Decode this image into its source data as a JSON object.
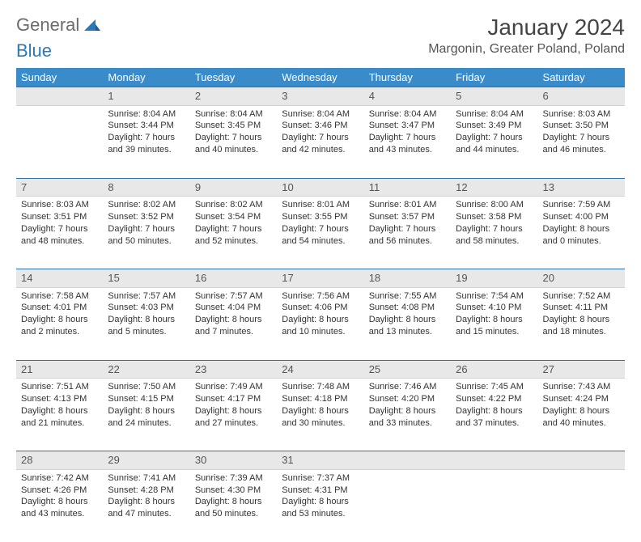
{
  "logo": {
    "word1": "General",
    "word2": "Blue"
  },
  "title": "January 2024",
  "location": "Margonin, Greater Poland, Poland",
  "colors": {
    "header_bg": "#3a8bc9",
    "header_text": "#ffffff",
    "daynum_bg": "#e8e8e8",
    "border": "#2f6fa3",
    "text": "#333333",
    "logo_gray": "#6b6b6b",
    "logo_blue": "#2a7ab9"
  },
  "dayHeaders": [
    "Sunday",
    "Monday",
    "Tuesday",
    "Wednesday",
    "Thursday",
    "Friday",
    "Saturday"
  ],
  "weeks": [
    {
      "nums": [
        "",
        "1",
        "2",
        "3",
        "4",
        "5",
        "6"
      ],
      "details": [
        "",
        "Sunrise: 8:04 AM\nSunset: 3:44 PM\nDaylight: 7 hours and 39 minutes.",
        "Sunrise: 8:04 AM\nSunset: 3:45 PM\nDaylight: 7 hours and 40 minutes.",
        "Sunrise: 8:04 AM\nSunset: 3:46 PM\nDaylight: 7 hours and 42 minutes.",
        "Sunrise: 8:04 AM\nSunset: 3:47 PM\nDaylight: 7 hours and 43 minutes.",
        "Sunrise: 8:04 AM\nSunset: 3:49 PM\nDaylight: 7 hours and 44 minutes.",
        "Sunrise: 8:03 AM\nSunset: 3:50 PM\nDaylight: 7 hours and 46 minutes."
      ]
    },
    {
      "nums": [
        "7",
        "8",
        "9",
        "10",
        "11",
        "12",
        "13"
      ],
      "details": [
        "Sunrise: 8:03 AM\nSunset: 3:51 PM\nDaylight: 7 hours and 48 minutes.",
        "Sunrise: 8:02 AM\nSunset: 3:52 PM\nDaylight: 7 hours and 50 minutes.",
        "Sunrise: 8:02 AM\nSunset: 3:54 PM\nDaylight: 7 hours and 52 minutes.",
        "Sunrise: 8:01 AM\nSunset: 3:55 PM\nDaylight: 7 hours and 54 minutes.",
        "Sunrise: 8:01 AM\nSunset: 3:57 PM\nDaylight: 7 hours and 56 minutes.",
        "Sunrise: 8:00 AM\nSunset: 3:58 PM\nDaylight: 7 hours and 58 minutes.",
        "Sunrise: 7:59 AM\nSunset: 4:00 PM\nDaylight: 8 hours and 0 minutes."
      ]
    },
    {
      "nums": [
        "14",
        "15",
        "16",
        "17",
        "18",
        "19",
        "20"
      ],
      "details": [
        "Sunrise: 7:58 AM\nSunset: 4:01 PM\nDaylight: 8 hours and 2 minutes.",
        "Sunrise: 7:57 AM\nSunset: 4:03 PM\nDaylight: 8 hours and 5 minutes.",
        "Sunrise: 7:57 AM\nSunset: 4:04 PM\nDaylight: 8 hours and 7 minutes.",
        "Sunrise: 7:56 AM\nSunset: 4:06 PM\nDaylight: 8 hours and 10 minutes.",
        "Sunrise: 7:55 AM\nSunset: 4:08 PM\nDaylight: 8 hours and 13 minutes.",
        "Sunrise: 7:54 AM\nSunset: 4:10 PM\nDaylight: 8 hours and 15 minutes.",
        "Sunrise: 7:52 AM\nSunset: 4:11 PM\nDaylight: 8 hours and 18 minutes."
      ]
    },
    {
      "nums": [
        "21",
        "22",
        "23",
        "24",
        "25",
        "26",
        "27"
      ],
      "details": [
        "Sunrise: 7:51 AM\nSunset: 4:13 PM\nDaylight: 8 hours and 21 minutes.",
        "Sunrise: 7:50 AM\nSunset: 4:15 PM\nDaylight: 8 hours and 24 minutes.",
        "Sunrise: 7:49 AM\nSunset: 4:17 PM\nDaylight: 8 hours and 27 minutes.",
        "Sunrise: 7:48 AM\nSunset: 4:18 PM\nDaylight: 8 hours and 30 minutes.",
        "Sunrise: 7:46 AM\nSunset: 4:20 PM\nDaylight: 8 hours and 33 minutes.",
        "Sunrise: 7:45 AM\nSunset: 4:22 PM\nDaylight: 8 hours and 37 minutes.",
        "Sunrise: 7:43 AM\nSunset: 4:24 PM\nDaylight: 8 hours and 40 minutes."
      ]
    },
    {
      "nums": [
        "28",
        "29",
        "30",
        "31",
        "",
        "",
        ""
      ],
      "details": [
        "Sunrise: 7:42 AM\nSunset: 4:26 PM\nDaylight: 8 hours and 43 minutes.",
        "Sunrise: 7:41 AM\nSunset: 4:28 PM\nDaylight: 8 hours and 47 minutes.",
        "Sunrise: 7:39 AM\nSunset: 4:30 PM\nDaylight: 8 hours and 50 minutes.",
        "Sunrise: 7:37 AM\nSunset: 4:31 PM\nDaylight: 8 hours and 53 minutes.",
        "",
        "",
        ""
      ]
    }
  ]
}
